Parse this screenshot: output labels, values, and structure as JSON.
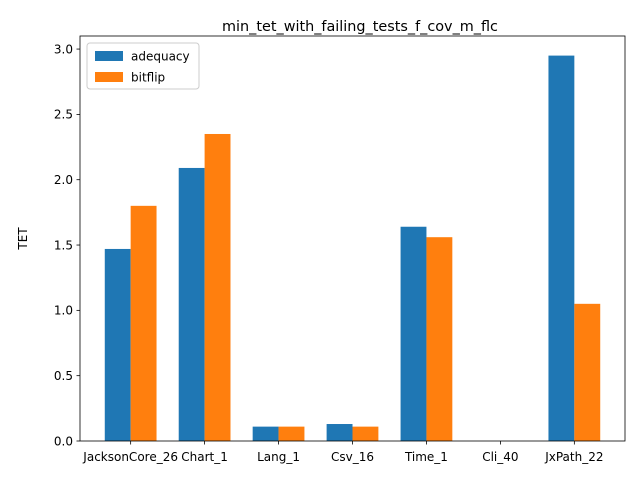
{
  "chart_data": {
    "type": "bar",
    "title": "min_tet_with_failing_tests_f_cov_m_flc",
    "xlabel": "",
    "ylabel": "TET",
    "categories": [
      "JacksonCore_26",
      "Chart_1",
      "Lang_1",
      "Csv_16",
      "Time_1",
      "Cli_40",
      "JxPath_22"
    ],
    "series": [
      {
        "name": "adequacy",
        "color": "#1f77b4",
        "values": [
          1.47,
          2.09,
          0.11,
          0.13,
          1.64,
          0.0,
          2.95
        ]
      },
      {
        "name": "bitflip",
        "color": "#ff7f0e",
        "values": [
          1.8,
          2.35,
          0.11,
          0.11,
          1.56,
          0.0,
          1.05
        ]
      }
    ],
    "ylim": [
      0,
      3.1
    ],
    "yticks": [
      0.0,
      0.5,
      1.0,
      1.5,
      2.0,
      2.5,
      3.0
    ],
    "ytick_labels": [
      "0.0",
      "0.5",
      "1.0",
      "1.5",
      "2.0",
      "2.5",
      "3.0"
    ],
    "grid": false,
    "legend_position": "top-left"
  }
}
